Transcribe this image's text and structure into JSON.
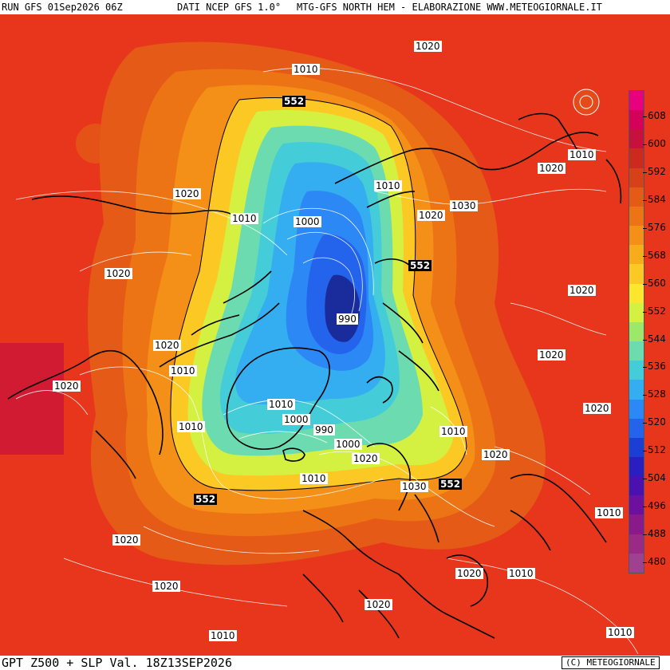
{
  "header": {
    "run": "RUN GFS 01Sep2026 06Z",
    "source": "DATI NCEP GFS 1.0°",
    "title": "MTG-GFS NORTH HEM - ELABORAZIONE WWW.METEOGIORNALE.IT"
  },
  "footer": {
    "label": "GPT Z500 + SLP Val. 18Z13SEP2026",
    "credit": "(C) METEOGIORNALE"
  },
  "legend": {
    "ticks": [
      "608",
      "600",
      "592",
      "584",
      "576",
      "568",
      "560",
      "552",
      "544",
      "536",
      "528",
      "520",
      "512",
      "504",
      "496",
      "488",
      "480"
    ],
    "colors": [
      "#e8007e",
      "#d4005a",
      "#c8103c",
      "#cc2a1e",
      "#d8401a",
      "#e45a16",
      "#ec7414",
      "#f49018",
      "#f8ac1c",
      "#fcc824",
      "#ffe62e",
      "#d4f040",
      "#9ce868",
      "#6cdcb0",
      "#44ccd8",
      "#34aef0",
      "#2c88f4",
      "#2464ec",
      "#1c3ed4",
      "#2a1ec0",
      "#4a10b0",
      "#6c10a0",
      "#8a1a8a",
      "#9a2a86",
      "#a04090"
    ]
  },
  "labels": {
    "h552": [
      "552",
      "552",
      "552",
      "552"
    ],
    "slp": [
      "1010",
      "1020",
      "1020",
      "1010",
      "1020",
      "1000",
      "1030",
      "1020",
      "990",
      "1020",
      "1010",
      "1010",
      "1020",
      "1010",
      "1000",
      "990",
      "1000",
      "1010",
      "1010",
      "1020",
      "1020",
      "1020",
      "1030",
      "552",
      "1020",
      "1010",
      "1010",
      "1020",
      "1010",
      "1020",
      "1020",
      "1020",
      "1010",
      "1020",
      "1010",
      "1010",
      "1020"
    ]
  },
  "colors": {
    "background_red": "#e8361c",
    "low_core": "#1a2c9c",
    "coast": "#000000",
    "isobar": "#ffffff"
  }
}
